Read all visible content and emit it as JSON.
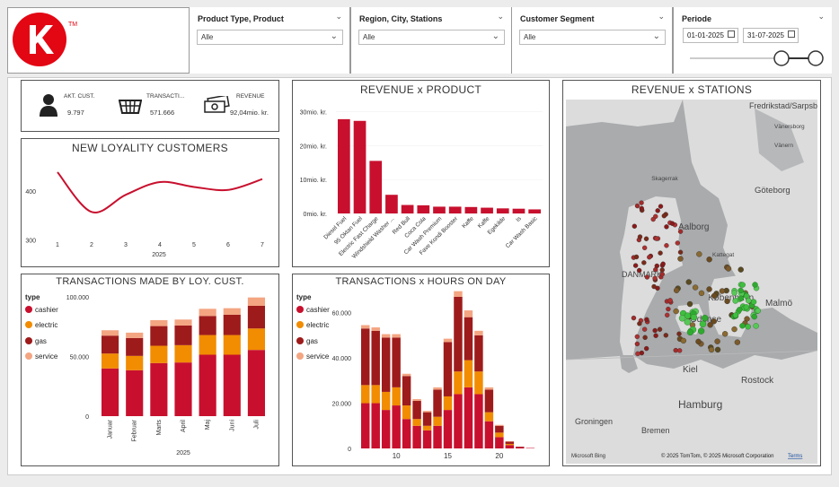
{
  "colors": {
    "red": "#c8102e",
    "orange": "#f28c00",
    "dark_red": "#9e1b1b",
    "salmon": "#f4a582",
    "green": "#3fbf3f"
  },
  "logo": {
    "letter": "K",
    "tm": "TM"
  },
  "filters": [
    {
      "label": "Product Type, Product",
      "value": "Alle"
    },
    {
      "label": "Region, City, Stations",
      "value": "Alle"
    },
    {
      "label": "Customer Segment",
      "value": "Alle"
    }
  ],
  "periode": {
    "label": "Periode",
    "start": "01-01-2025",
    "end": "31-07-2025"
  },
  "kpis": [
    {
      "label": "AKT. CUST.",
      "value": "9.797",
      "icon": "person-icon"
    },
    {
      "label": "TRANSACTI...",
      "value": "571.666",
      "icon": "basket-icon"
    },
    {
      "label": "REVENUE",
      "value": "92,04mio. kr.",
      "icon": "money-icon"
    }
  ],
  "loyalty": {
    "title": "NEW LOYALITY CUSTOMERS",
    "year": "2025",
    "y_ticks": [
      "400",
      "300"
    ],
    "x_ticks": [
      "1",
      "2",
      "3",
      "4",
      "5",
      "6",
      "7"
    ]
  },
  "revenue_product": {
    "title": "REVENUE x PRODUCT",
    "y_ticks": [
      "30mio. kr.",
      "20mio. kr.",
      "10mio. kr.",
      "0mio. kr."
    ]
  },
  "loy_tx": {
    "title": "TRANSACTIONS MADE BY LOY. CUST.",
    "legend_title": "type",
    "legend": [
      "cashier",
      "electric",
      "gas",
      "service"
    ],
    "y_ticks": [
      "100.000",
      "50.000",
      "0"
    ],
    "year": "2025"
  },
  "hours": {
    "title": "TRANSACTIONS x HOURS ON DAY",
    "legend_title": "type",
    "legend": [
      "cashier",
      "electric",
      "gas",
      "service"
    ],
    "y_ticks": [
      "60.000",
      "40.000",
      "20.000",
      "0"
    ],
    "x_ticks": [
      "10",
      "15",
      "20"
    ]
  },
  "map": {
    "title": "REVENUE x STATIONS",
    "labels": [
      "Fredrikstad/Sarpsborg",
      "Vänersborg",
      "Vänern",
      "Skagerrak",
      "Göteborg",
      "Aalborg",
      "Kattegat",
      "DANMARK",
      "København",
      "Malmö",
      "Odense",
      "Kiel",
      "Rostock",
      "Hamburg",
      "Groningen",
      "Bremen"
    ],
    "footer": "© 2025 TomTom, © 2025 Microsoft Corporation",
    "terms": "Terms",
    "bing": "Microsoft Bing"
  },
  "chart_data": [
    {
      "type": "line",
      "title": "NEW LOYALITY CUSTOMERS",
      "x": [
        1,
        2,
        3,
        4,
        5,
        6,
        7
      ],
      "series": [
        {
          "values": [
            438,
            357,
            392,
            418,
            408,
            402,
            424
          ]
        }
      ],
      "xlabel": "2025",
      "ylim": [
        290,
        460
      ]
    },
    {
      "type": "bar",
      "title": "REVENUE x PRODUCT",
      "categories": [
        "Diesel Fuel",
        "95 Oktan Fuel",
        "Electric Fast Charge",
        "Windshield Washer ...",
        "Red Bull",
        "Coca Cola",
        "Car Wash Premium",
        "Fave Kondi Booster",
        "Kaffe",
        "Kaffe",
        "Egekilde",
        "Is",
        "Car Wash Basic"
      ],
      "values": [
        27.8,
        27.3,
        15.5,
        5.5,
        2.5,
        2.4,
        2.0,
        2.0,
        1.9,
        1.7,
        1.5,
        1.4,
        1.2
      ],
      "ylim": [
        0,
        32
      ],
      "unit": "mio. kr."
    },
    {
      "type": "bar",
      "title": "TRANSACTIONS MADE BY LOY. CUST.",
      "categories": [
        "Januar",
        "Februar",
        "Marts",
        "April",
        "Maj",
        "Juni",
        "Juli"
      ],
      "series": [
        {
          "name": "cashier",
          "values": [
            40000,
            38500,
            44500,
            45000,
            51500,
            51500,
            55500
          ]
        },
        {
          "name": "electric",
          "values": [
            12500,
            12000,
            14500,
            14500,
            16500,
            16500,
            18000
          ]
        },
        {
          "name": "gas",
          "values": [
            15000,
            15000,
            16500,
            16500,
            16000,
            17000,
            19000
          ]
        },
        {
          "name": "service",
          "values": [
            4500,
            4500,
            5000,
            5000,
            6000,
            5500,
            7000
          ]
        }
      ],
      "ylim": [
        0,
        100000
      ],
      "xlabel": "2025"
    },
    {
      "type": "bar",
      "title": "TRANSACTIONS x HOURS ON DAY",
      "categories": [
        7,
        8,
        9,
        10,
        11,
        12,
        13,
        14,
        15,
        16,
        17,
        18,
        19,
        20,
        21,
        22,
        23
      ],
      "series": [
        {
          "name": "cashier",
          "values": [
            20000,
            20000,
            17000,
            19000,
            13000,
            10000,
            8000,
            10000,
            17000,
            24000,
            27000,
            24000,
            12000,
            5000,
            1500,
            500,
            200
          ]
        },
        {
          "name": "electric",
          "values": [
            8000,
            8000,
            8000,
            8000,
            6000,
            3000,
            2000,
            4000,
            6000,
            10000,
            12000,
            10000,
            4000,
            2000,
            500,
            0,
            0
          ]
        },
        {
          "name": "gas",
          "values": [
            25000,
            24000,
            24000,
            22000,
            13000,
            8000,
            6000,
            12000,
            24000,
            33000,
            19000,
            16000,
            10000,
            3000,
            1000,
            300,
            0
          ]
        },
        {
          "name": "service",
          "values": [
            1500,
            1500,
            1500,
            1500,
            1000,
            800,
            600,
            1000,
            1500,
            2500,
            3000,
            2000,
            1000,
            400,
            200,
            0,
            0
          ]
        }
      ],
      "ylim": [
        0,
        65000
      ]
    }
  ]
}
